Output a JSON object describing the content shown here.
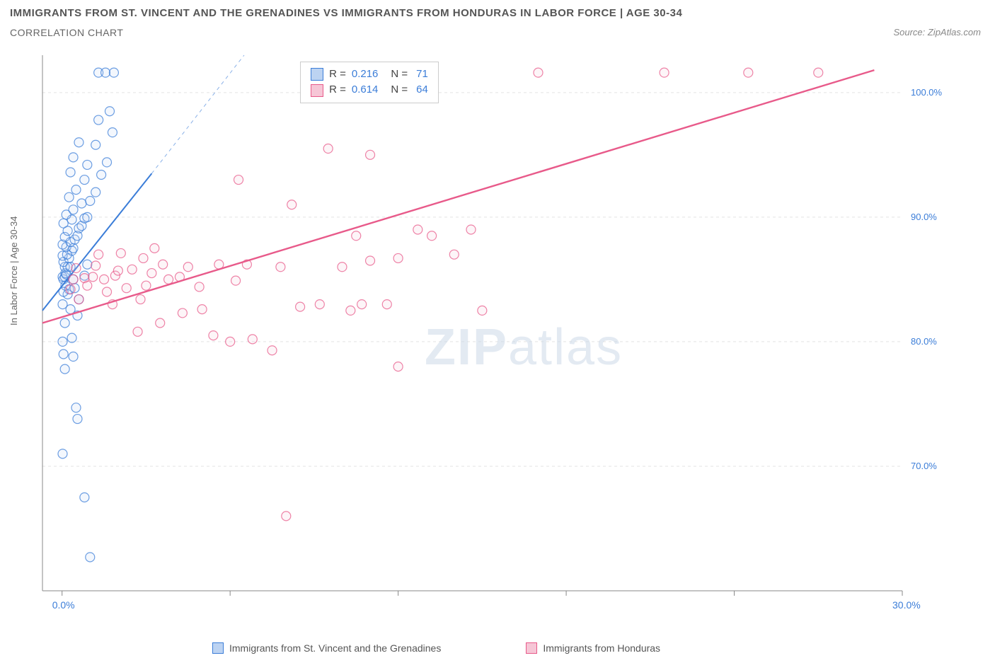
{
  "title": "IMMIGRANTS FROM ST. VINCENT AND THE GRENADINES VS IMMIGRANTS FROM HONDURAS IN LABOR FORCE | AGE 30-34",
  "subtitle": "CORRELATION CHART",
  "source_label": "Source: ",
  "source_name": "ZipAtlas.com",
  "watermark_a": "ZIP",
  "watermark_b": "atlas",
  "ylabel": "In Labor Force | Age 30-34",
  "chart": {
    "type": "scatter",
    "background_color": "#ffffff",
    "grid_color": "#e3e3e3",
    "axis_color": "#888888",
    "tick_color": "#888888",
    "xlim": [
      -0.7,
      30.0
    ],
    "ylim": [
      60.0,
      103.0
    ],
    "xticks": [
      0.0,
      30.0
    ],
    "xtick_labels": [
      "0.0%",
      "30.0%"
    ],
    "xtick_minor": [
      6,
      12,
      18,
      24
    ],
    "yticks": [
      70.0,
      80.0,
      90.0,
      100.0
    ],
    "ytick_labels": [
      "70.0%",
      "80.0%",
      "90.0%",
      "100.0%"
    ],
    "marker_radius": 6.5,
    "marker_stroke_width": 1.2,
    "marker_fill_opacity": 0.18,
    "series": [
      {
        "id": "svg",
        "label": "Immigrants from St. Vincent and the Grenadines",
        "color": "#3b7dd8",
        "fill": "#bcd3f2",
        "R": "0.216",
        "N": "71",
        "trend": {
          "x1": -0.7,
          "y1": 82.5,
          "x2": 3.2,
          "y2": 93.5,
          "dash_x2": 6.5,
          "dash_y2": 103.0,
          "width": 2.0
        },
        "points": [
          [
            0.02,
            85.2
          ],
          [
            0.05,
            85.0
          ],
          [
            0.1,
            85.2
          ],
          [
            0.12,
            85.5
          ],
          [
            0.15,
            85.4
          ],
          [
            0.1,
            86.0
          ],
          [
            0.2,
            86.0
          ],
          [
            0.05,
            86.4
          ],
          [
            0.3,
            86.0
          ],
          [
            0.25,
            86.7
          ],
          [
            0.02,
            86.9
          ],
          [
            0.18,
            87.0
          ],
          [
            0.35,
            87.3
          ],
          [
            0.15,
            87.6
          ],
          [
            0.4,
            87.5
          ],
          [
            0.02,
            87.8
          ],
          [
            0.3,
            88.0
          ],
          [
            0.45,
            88.2
          ],
          [
            0.1,
            88.4
          ],
          [
            0.55,
            88.5
          ],
          [
            0.2,
            88.9
          ],
          [
            0.6,
            89.1
          ],
          [
            0.05,
            89.5
          ],
          [
            0.7,
            89.3
          ],
          [
            0.35,
            89.8
          ],
          [
            0.8,
            89.9
          ],
          [
            0.12,
            84.5
          ],
          [
            0.25,
            84.2
          ],
          [
            0.4,
            85.0
          ],
          [
            0.2,
            83.8
          ],
          [
            0.05,
            84.0
          ],
          [
            0.45,
            84.3
          ],
          [
            0.02,
            83.0
          ],
          [
            0.3,
            82.6
          ],
          [
            0.6,
            83.4
          ],
          [
            0.15,
            90.2
          ],
          [
            0.4,
            90.6
          ],
          [
            0.9,
            90.0
          ],
          [
            0.7,
            91.1
          ],
          [
            0.25,
            91.6
          ],
          [
            1.0,
            91.3
          ],
          [
            0.5,
            92.2
          ],
          [
            1.2,
            92.0
          ],
          [
            0.8,
            93.0
          ],
          [
            0.3,
            93.6
          ],
          [
            1.4,
            93.4
          ],
          [
            0.9,
            94.2
          ],
          [
            0.4,
            94.8
          ],
          [
            1.6,
            94.4
          ],
          [
            0.6,
            96.0
          ],
          [
            1.2,
            95.8
          ],
          [
            1.8,
            96.8
          ],
          [
            1.3,
            97.8
          ],
          [
            1.7,
            98.5
          ],
          [
            1.3,
            101.6
          ],
          [
            1.55,
            101.6
          ],
          [
            1.85,
            101.6
          ],
          [
            0.02,
            80.0
          ],
          [
            0.35,
            80.3
          ],
          [
            0.05,
            79.0
          ],
          [
            0.4,
            78.8
          ],
          [
            0.1,
            77.8
          ],
          [
            0.5,
            74.7
          ],
          [
            0.55,
            73.8
          ],
          [
            0.02,
            71.0
          ],
          [
            0.8,
            67.5
          ],
          [
            1.0,
            62.7
          ],
          [
            0.1,
            81.5
          ],
          [
            0.55,
            82.1
          ],
          [
            0.8,
            85.3
          ],
          [
            0.9,
            86.2
          ]
        ]
      },
      {
        "id": "hon",
        "label": "Immigrants from Honduras",
        "color": "#e85a8a",
        "fill": "#f6c6d6",
        "R": "0.614",
        "N": "64",
        "trend": {
          "x1": -0.7,
          "y1": 81.5,
          "x2": 29.0,
          "y2": 101.8,
          "dash_x2": 29.0,
          "dash_y2": 101.8,
          "width": 2.4
        },
        "points": [
          [
            0.4,
            85.0
          ],
          [
            0.8,
            85.1
          ],
          [
            1.1,
            85.2
          ],
          [
            1.5,
            85.0
          ],
          [
            1.9,
            85.3
          ],
          [
            0.5,
            85.9
          ],
          [
            1.2,
            86.1
          ],
          [
            2.0,
            85.7
          ],
          [
            0.3,
            84.2
          ],
          [
            0.9,
            84.5
          ],
          [
            1.6,
            84.0
          ],
          [
            2.3,
            84.3
          ],
          [
            0.6,
            83.4
          ],
          [
            1.8,
            83.0
          ],
          [
            2.8,
            83.4
          ],
          [
            2.5,
            85.8
          ],
          [
            3.2,
            85.5
          ],
          [
            2.9,
            86.7
          ],
          [
            3.6,
            86.2
          ],
          [
            3.0,
            84.5
          ],
          [
            3.8,
            85.0
          ],
          [
            4.5,
            86.0
          ],
          [
            4.2,
            85.2
          ],
          [
            4.9,
            84.4
          ],
          [
            4.3,
            82.3
          ],
          [
            3.5,
            81.5
          ],
          [
            2.7,
            80.8
          ],
          [
            5.6,
            86.2
          ],
          [
            6.2,
            84.9
          ],
          [
            5.4,
            80.5
          ],
          [
            6.0,
            80.0
          ],
          [
            6.8,
            80.2
          ],
          [
            7.5,
            79.3
          ],
          [
            6.3,
            93.0
          ],
          [
            6.6,
            86.2
          ],
          [
            7.8,
            86.0
          ],
          [
            8.2,
            91.0
          ],
          [
            8.5,
            82.8
          ],
          [
            9.2,
            83.0
          ],
          [
            9.5,
            95.5
          ],
          [
            10.0,
            86.0
          ],
          [
            10.3,
            82.5
          ],
          [
            10.7,
            83.0
          ],
          [
            10.5,
            88.5
          ],
          [
            11.0,
            95.0
          ],
          [
            11.0,
            86.5
          ],
          [
            11.6,
            83.0
          ],
          [
            12.0,
            86.7
          ],
          [
            12.0,
            78.0
          ],
          [
            12.7,
            89.0
          ],
          [
            13.2,
            88.5
          ],
          [
            14.0,
            87.0
          ],
          [
            15.0,
            82.5
          ],
          [
            14.6,
            89.0
          ],
          [
            9.5,
            101.6
          ],
          [
            17.0,
            101.6
          ],
          [
            21.5,
            101.6
          ],
          [
            24.5,
            101.6
          ],
          [
            27.0,
            101.6
          ],
          [
            8.0,
            66.0
          ],
          [
            5.0,
            82.6
          ],
          [
            3.3,
            87.5
          ],
          [
            2.1,
            87.1
          ],
          [
            1.3,
            87.0
          ]
        ]
      }
    ]
  },
  "corr_box_labels": {
    "R": "R =",
    "N": "N ="
  },
  "bottom_legend": [
    {
      "series": 0
    },
    {
      "series": 1
    }
  ]
}
